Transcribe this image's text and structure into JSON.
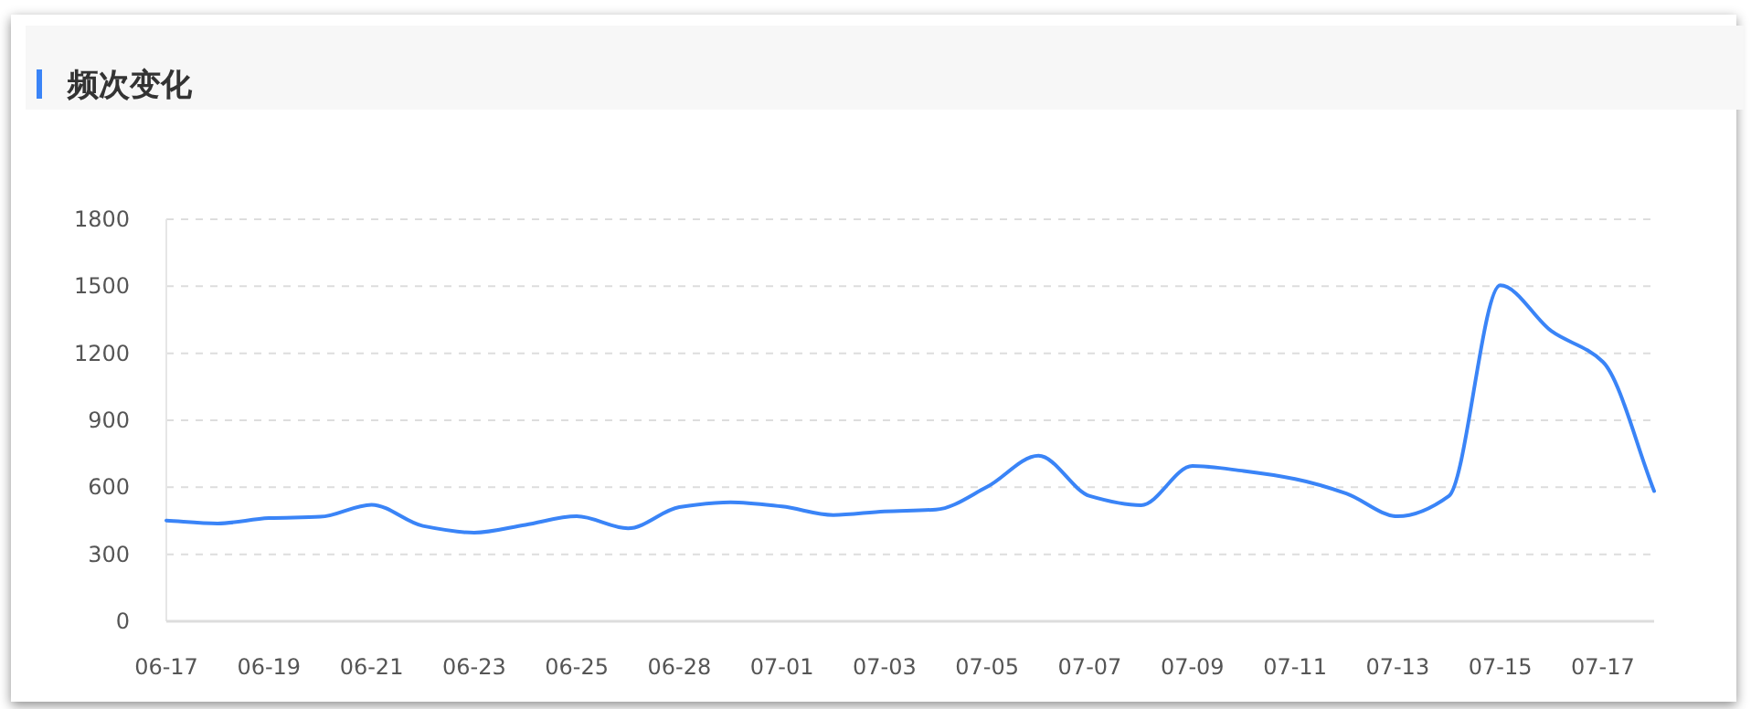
{
  "chart_data": {
    "type": "line",
    "title": "频次变化",
    "categories": [
      "06-17",
      null,
      "06-19",
      null,
      "06-21",
      null,
      "06-23",
      null,
      "06-25",
      null,
      "06-28",
      null,
      "07-01",
      null,
      "07-03",
      null,
      "07-05",
      null,
      "07-07",
      null,
      "07-09",
      null,
      "07-11",
      null,
      "07-13",
      null,
      "07-15",
      null,
      "07-17",
      null
    ],
    "values": [
      451,
      438,
      462,
      468,
      522,
      427,
      397,
      432,
      470,
      416,
      511,
      533,
      514,
      476,
      492,
      500,
      602,
      741,
      561,
      520,
      695,
      673,
      637,
      572,
      470,
      561,
      1504,
      1299,
      1162,
      583
    ],
    "color": "#3a84f7",
    "ylim": [
      0,
      1800
    ],
    "yticks": [
      0,
      300,
      600,
      900,
      1200,
      1500,
      1800
    ],
    "grid": "y"
  }
}
